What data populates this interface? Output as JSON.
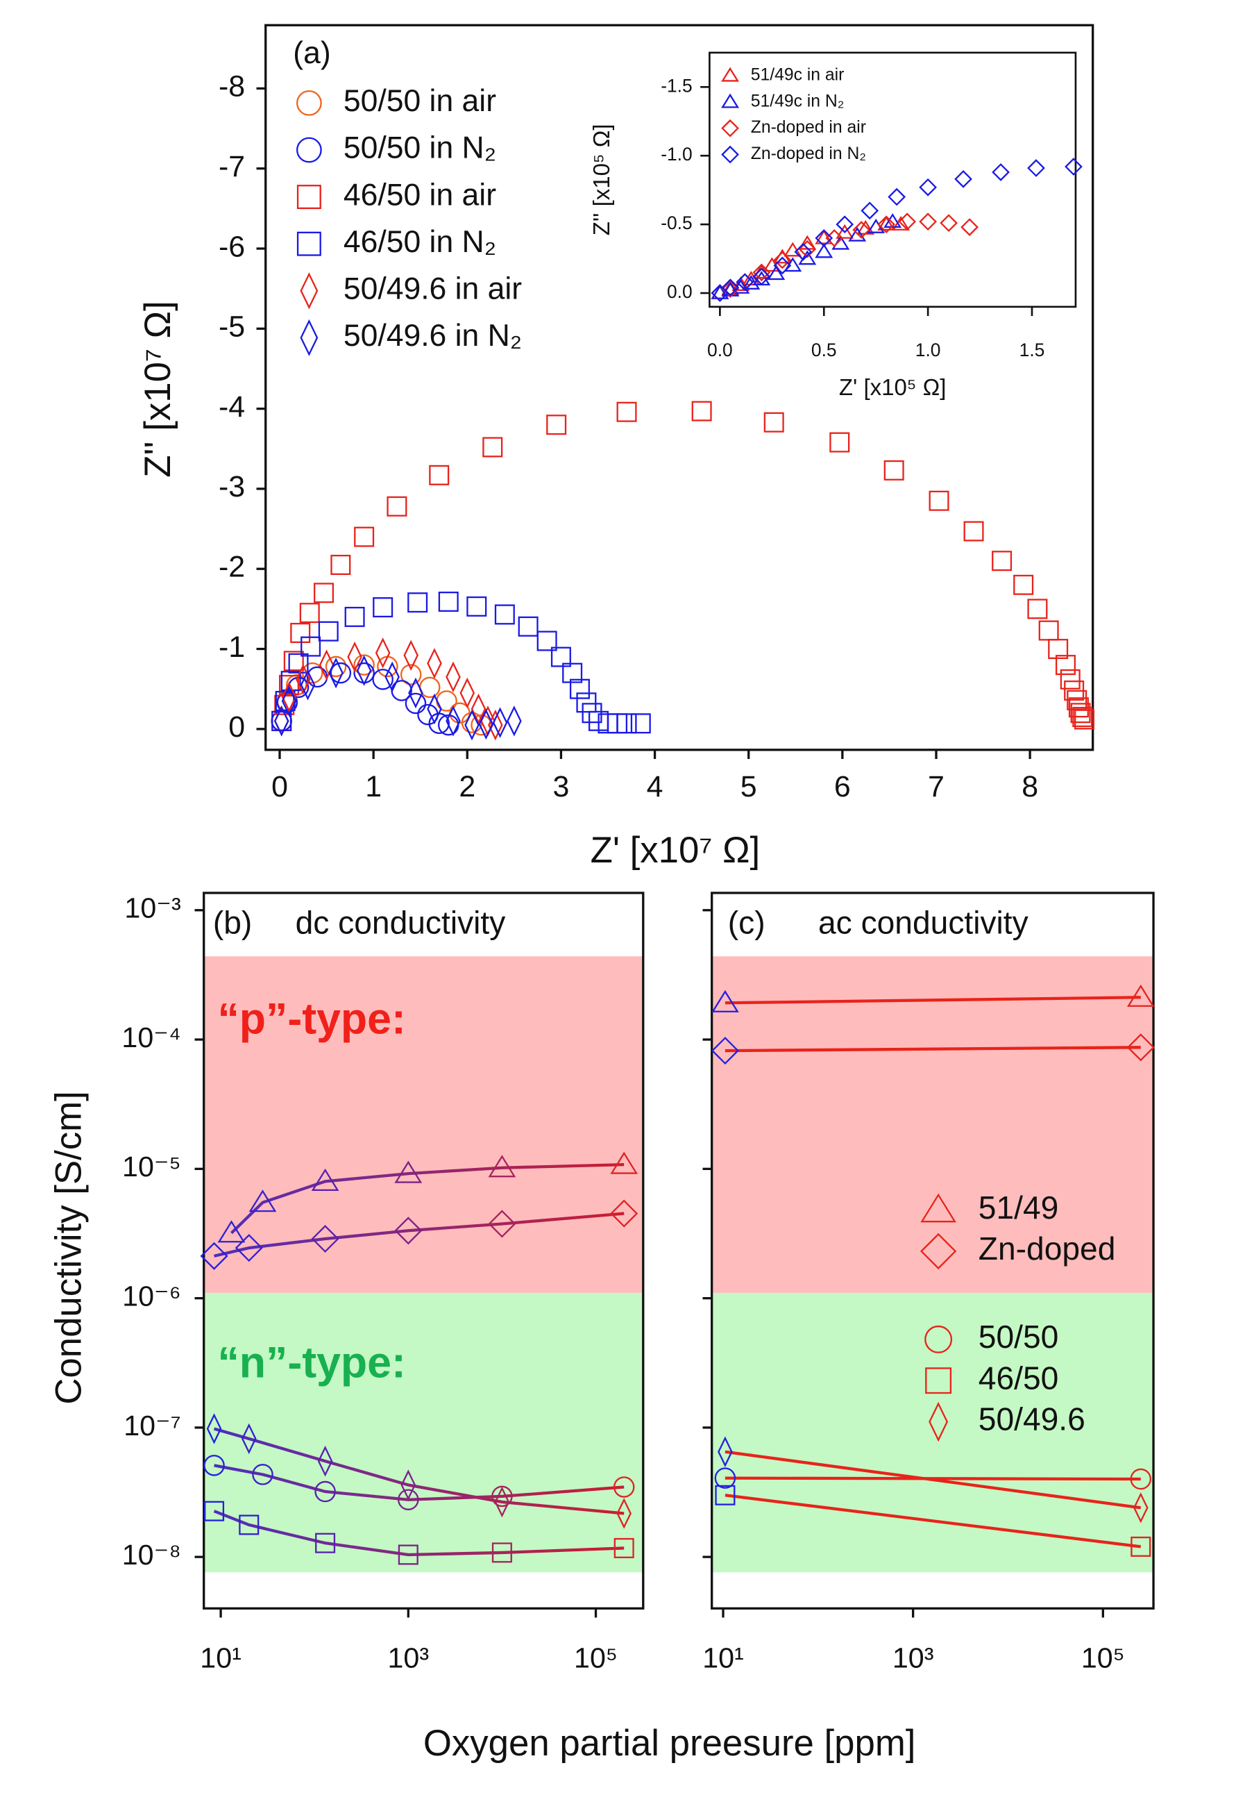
{
  "chart_data": [
    {
      "type": "scatter",
      "panel_label": "(a)",
      "xlabel": "Z' [x10⁷ Ω]",
      "ylabel": "Z'' [x10⁷ Ω]",
      "xlim": [
        -0.15,
        8.67
      ],
      "ylim": [
        0.26,
        -8.79
      ],
      "xticks": [
        0,
        1,
        2,
        3,
        4,
        5,
        6,
        7,
        8
      ],
      "yticks": [
        0,
        -1,
        -2,
        -3,
        -4,
        -5,
        -6,
        -7,
        -8
      ],
      "series": [
        {
          "name": "50/50 in air",
          "color": "#f0641e",
          "marker": "circle",
          "x": [
            0.02,
            0.08,
            0.18,
            0.35,
            0.6,
            0.9,
            1.15,
            1.4,
            1.6,
            1.78,
            1.92,
            2.05,
            2.15
          ],
          "values": [
            -0.1,
            -0.35,
            -0.55,
            -0.7,
            -0.78,
            -0.8,
            -0.78,
            -0.68,
            -0.52,
            -0.35,
            -0.2,
            -0.08,
            -0.05
          ]
        },
        {
          "name": "50/50 in N₂",
          "color": "#1a1ae6",
          "marker": "circle",
          "x": [
            0.02,
            0.08,
            0.2,
            0.4,
            0.65,
            0.9,
            1.1,
            1.3,
            1.45,
            1.58,
            1.7,
            1.8
          ],
          "values": [
            -0.1,
            -0.33,
            -0.52,
            -0.65,
            -0.7,
            -0.7,
            -0.62,
            -0.48,
            -0.32,
            -0.18,
            -0.07,
            -0.05
          ]
        },
        {
          "name": "46/50 in air",
          "color": "#e8231b",
          "marker": "square",
          "x": [
            0.02,
            0.05,
            0.1,
            0.15,
            0.22,
            0.32,
            0.47,
            0.65,
            0.9,
            1.25,
            1.7,
            2.27,
            2.95,
            3.7,
            4.5,
            5.27,
            5.97,
            6.55,
            7.03,
            7.4,
            7.7,
            7.93,
            8.08,
            8.2,
            8.3,
            8.38,
            8.43,
            8.47,
            8.5,
            8.52,
            8.54,
            8.56,
            8.58
          ],
          "values": [
            -0.1,
            -0.3,
            -0.55,
            -0.85,
            -1.2,
            -1.45,
            -1.7,
            -2.05,
            -2.4,
            -2.78,
            -3.17,
            -3.52,
            -3.8,
            -3.96,
            -3.97,
            -3.83,
            -3.58,
            -3.23,
            -2.85,
            -2.47,
            -2.1,
            -1.8,
            -1.5,
            -1.23,
            -1.0,
            -0.8,
            -0.62,
            -0.48,
            -0.36,
            -0.27,
            -0.2,
            -0.15,
            -0.12
          ]
        },
        {
          "name": "46/50 in N₂",
          "color": "#1a1ae6",
          "marker": "square",
          "x": [
            0.02,
            0.06,
            0.12,
            0.2,
            0.33,
            0.52,
            0.8,
            1.1,
            1.47,
            1.8,
            2.1,
            2.4,
            2.65,
            2.85,
            3.0,
            3.12,
            3.2,
            3.27,
            3.33,
            3.4,
            3.5,
            3.6,
            3.7,
            3.85
          ],
          "values": [
            -0.1,
            -0.35,
            -0.6,
            -0.82,
            -1.03,
            -1.22,
            -1.4,
            -1.52,
            -1.58,
            -1.59,
            -1.53,
            -1.43,
            -1.28,
            -1.1,
            -0.9,
            -0.7,
            -0.5,
            -0.33,
            -0.2,
            -0.1,
            -0.07,
            -0.07,
            -0.07,
            -0.07
          ]
        },
        {
          "name": "50/49.6 in air",
          "color": "#e8231b",
          "marker": "narrow_diamond",
          "x": [
            0.02,
            0.1,
            0.25,
            0.5,
            0.8,
            1.1,
            1.4,
            1.65,
            1.85,
            2.0,
            2.12,
            2.22,
            2.3
          ],
          "values": [
            -0.1,
            -0.4,
            -0.62,
            -0.8,
            -0.9,
            -0.95,
            -0.92,
            -0.82,
            -0.65,
            -0.45,
            -0.25,
            -0.1,
            -0.05
          ]
        },
        {
          "name": "50/49.6 in N₂",
          "color": "#1a1ae6",
          "marker": "narrow_diamond",
          "x": [
            0.02,
            0.1,
            0.3,
            0.6,
            0.9,
            1.2,
            1.45,
            1.65,
            1.85,
            2.05,
            2.2,
            2.35,
            2.5
          ],
          "values": [
            -0.1,
            -0.35,
            -0.55,
            -0.7,
            -0.73,
            -0.65,
            -0.45,
            -0.25,
            -0.1,
            -0.05,
            -0.06,
            -0.08,
            -0.1
          ]
        }
      ]
    },
    {
      "type": "scatter",
      "xlabel": "Z' [x10⁵ Ω]",
      "ylabel": "Z'' [x10⁵ Ω]",
      "xlim": [
        -0.05,
        1.71
      ],
      "ylim": [
        0.1,
        -1.75
      ],
      "xticks": [
        {
          "value": 0,
          "label": "0.0"
        },
        0.5,
        {
          "value": 1,
          "label": "1.0"
        },
        1.5
      ],
      "yticks": [
        {
          "value": 0,
          "label": "0.0"
        },
        -0.5,
        {
          "value": -1,
          "label": "-1.0"
        },
        {
          "value": -1.5,
          "label": "-1.5"
        }
      ],
      "series": [
        {
          "name": "51/49c in air",
          "color": "#e8231b",
          "marker": "triangle",
          "x": [
            0,
            0.05,
            0.1,
            0.15,
            0.2,
            0.25,
            0.3,
            0.35,
            0.42,
            0.5,
            0.6,
            0.7,
            0.8,
            0.87
          ],
          "values": [
            0,
            -0.03,
            -0.06,
            -0.1,
            -0.15,
            -0.2,
            -0.26,
            -0.31,
            -0.36,
            -0.4,
            -0.44,
            -0.47,
            -0.5,
            -0.5
          ]
        },
        {
          "name": "51/49c in N₂",
          "color": "#1a1ae6",
          "marker": "triangle",
          "x": [
            0,
            0.05,
            0.1,
            0.15,
            0.2,
            0.27,
            0.35,
            0.42,
            0.5,
            0.58,
            0.66,
            0.75,
            0.83
          ],
          "values": [
            0,
            -0.02,
            -0.04,
            -0.07,
            -0.1,
            -0.14,
            -0.2,
            -0.25,
            -0.3,
            -0.36,
            -0.42,
            -0.48,
            -0.52
          ]
        },
        {
          "name": "Zn-doped in air",
          "color": "#e8231b",
          "marker": "diamond",
          "x": [
            0,
            0.05,
            0.12,
            0.2,
            0.3,
            0.42,
            0.55,
            0.68,
            0.8,
            0.9,
            1.0,
            1.1,
            1.2
          ],
          "values": [
            0,
            -0.03,
            -0.08,
            -0.15,
            -0.24,
            -0.32,
            -0.4,
            -0.46,
            -0.5,
            -0.52,
            -0.52,
            -0.51,
            -0.48
          ]
        },
        {
          "name": "Zn-doped in N₂",
          "color": "#1a1ae6",
          "marker": "diamond",
          "x": [
            0,
            0.05,
            0.12,
            0.2,
            0.3,
            0.4,
            0.5,
            0.6,
            0.72,
            0.85,
            1.0,
            1.17,
            1.35,
            1.52,
            1.7
          ],
          "values": [
            0,
            -0.04,
            -0.08,
            -0.12,
            -0.2,
            -0.3,
            -0.4,
            -0.5,
            -0.6,
            -0.7,
            -0.77,
            -0.83,
            -0.88,
            -0.91,
            -0.92
          ]
        }
      ]
    },
    {
      "type": "line",
      "panel_label": "(b)",
      "title": "dc conductivity",
      "xlabel": "Oxygen partial preesure [ppm]",
      "ylabel": "Conductivity [S/cm]",
      "xscale": "log",
      "yscale": "log",
      "xlim": [
        6.6,
        320000
      ],
      "ylim": [
        4e-09,
        0.00136
      ],
      "xticks": [
        {
          "value": 10,
          "label": "10¹"
        },
        {
          "value": 1000,
          "label": "10³"
        },
        {
          "value": 100000,
          "label": "10⁵"
        }
      ],
      "yticks": [
        {
          "value": 1e-08,
          "label": "10⁻⁸"
        },
        {
          "value": 1e-07,
          "label": "10⁻⁷"
        },
        {
          "value": 1e-06,
          "label": "10⁻⁶"
        },
        {
          "value": 1e-05,
          "label": "10⁻⁵"
        },
        {
          "value": 0.0001,
          "label": "10⁻⁴"
        },
        {
          "value": 0.001,
          "label": "10⁻³"
        }
      ],
      "regions": [
        {
          "label": "“p”-type:",
          "from": 1.1e-06,
          "to": 0.00044,
          "color": "#ffbcbc",
          "label_color": "#f0201a"
        },
        {
          "label": "“n”-type:",
          "from": 7.6e-09,
          "to": 1.1e-06,
          "color": "#c4f8c4",
          "label_color": "#18b050"
        }
      ],
      "marker_colors": [
        "#1f1fe6",
        "#e8231b"
      ],
      "line_colors": [
        "#4b2fbf",
        "#d11d2a"
      ],
      "series": [
        {
          "marker": "triangle",
          "x": [
            13,
            28,
            130,
            1000,
            10000,
            200000
          ],
          "values": [
            3.19e-06,
            5.5e-06,
            8e-06,
            9.2e-06,
            1.02e-05,
            1.08e-05
          ]
        },
        {
          "marker": "diamond",
          "x": [
            8.5,
            20,
            130,
            1000,
            10000,
            200000
          ],
          "values": [
            2.12e-06,
            2.45e-06,
            2.88e-06,
            3.33e-06,
            3.76e-06,
            4.52e-06
          ]
        },
        {
          "marker": "narrow_diamond",
          "x": [
            8.5,
            20,
            130,
            1000,
            10000,
            200000
          ],
          "values": [
            9.8e-08,
            8.2e-08,
            5.5e-08,
            3.6e-08,
            2.66e-08,
            2.17e-08
          ]
        },
        {
          "marker": "circle",
          "x": [
            8.5,
            28,
            130,
            1000,
            10000,
            200000
          ],
          "values": [
            5.1e-08,
            4.34e-08,
            3.2e-08,
            2.77e-08,
            2.94e-08,
            3.47e-08
          ]
        },
        {
          "marker": "square",
          "x": [
            8.5,
            20,
            130,
            1000,
            10000,
            200000
          ],
          "values": [
            2.26e-08,
            1.77e-08,
            1.28e-08,
            1.04e-08,
            1.08e-08,
            1.17e-08
          ]
        }
      ]
    },
    {
      "type": "line",
      "panel_label": "(c)",
      "title": "ac conductivity",
      "xscale": "log",
      "yscale": "log",
      "xlim": [
        7.6,
        340000
      ],
      "ylim": [
        4e-09,
        0.00136
      ],
      "xticks": [
        {
          "value": 10,
          "label": "10¹"
        },
        {
          "value": 1000,
          "label": "10³"
        },
        {
          "value": 100000,
          "label": "10⁵"
        }
      ],
      "yticks": [
        1e-08,
        1e-07,
        1e-06,
        1e-05,
        0.0001,
        0.001
      ],
      "ytick_labels": false,
      "regions": [
        {
          "from": 1.1e-06,
          "to": 0.00044,
          "color": "#ffbcbc"
        },
        {
          "from": 7.6e-09,
          "to": 1.1e-06,
          "color": "#c4f8c4"
        }
      ],
      "marker_colors": [
        "#1f1fe6",
        "#e8231b"
      ],
      "line_colors": [
        "#e8231b",
        "#e8231b"
      ],
      "series": [
        {
          "name": "51/49",
          "color": "#e8231b",
          "marker": "triangle",
          "x": [
            10.5,
            250000
          ],
          "values": [
            0.000192,
            0.000212
          ]
        },
        {
          "name": "Zn-doped",
          "color": "#e8231b",
          "marker": "diamond",
          "x": [
            10.5,
            250000
          ],
          "values": [
            8.2e-05,
            8.7e-05
          ]
        },
        {
          "name": "50/50",
          "color": "#e8231b",
          "marker": "circle",
          "x": [
            10.5,
            250000
          ],
          "values": [
            4.07e-08,
            4e-08
          ]
        },
        {
          "name": "46/50",
          "color": "#e8231b",
          "marker": "square",
          "x": [
            10.5,
            250000
          ],
          "values": [
            3e-08,
            1.2e-08
          ]
        },
        {
          "name": "50/49.6",
          "color": "#e8231b",
          "marker": "narrow_diamond",
          "x": [
            10.5,
            250000
          ],
          "values": [
            6.5e-08,
            2.4e-08
          ]
        }
      ]
    }
  ]
}
